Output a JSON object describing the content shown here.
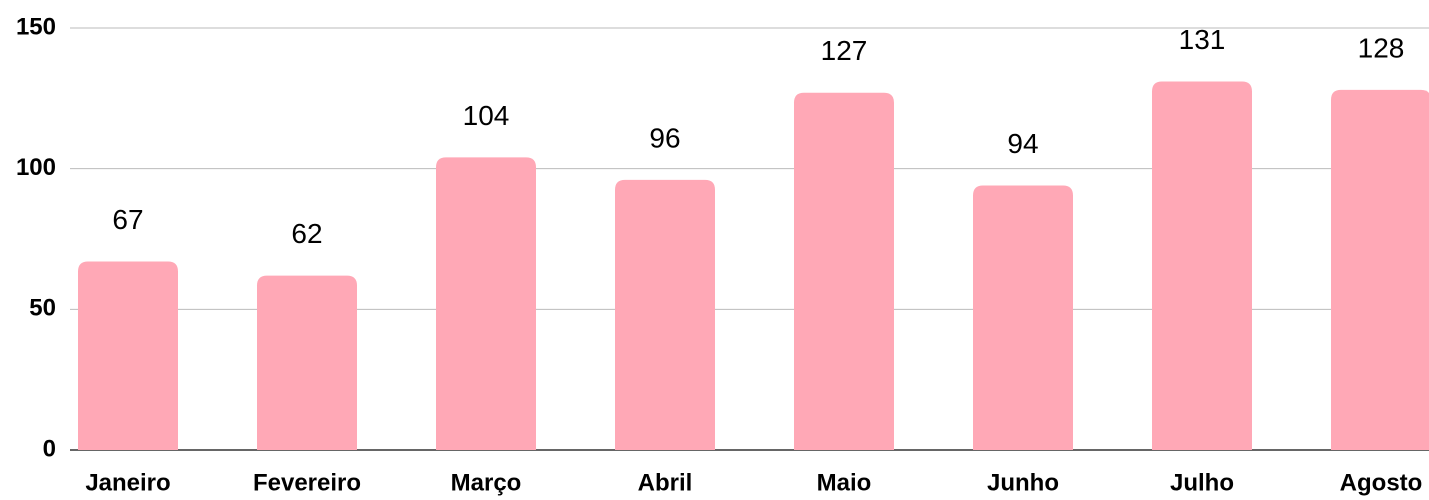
{
  "chart_data": {
    "type": "bar",
    "categories": [
      "Janeiro",
      "Fevereiro",
      "Março",
      "Abril",
      "Maio",
      "Junho",
      "Julho",
      "Agosto"
    ],
    "values": [
      67,
      62,
      104,
      96,
      127,
      94,
      131,
      128
    ],
    "color": "#ffa8b6",
    "ylim": [
      0,
      150
    ],
    "yticks": [
      0,
      50,
      100,
      150
    ],
    "grid": true,
    "data_labels": true
  }
}
